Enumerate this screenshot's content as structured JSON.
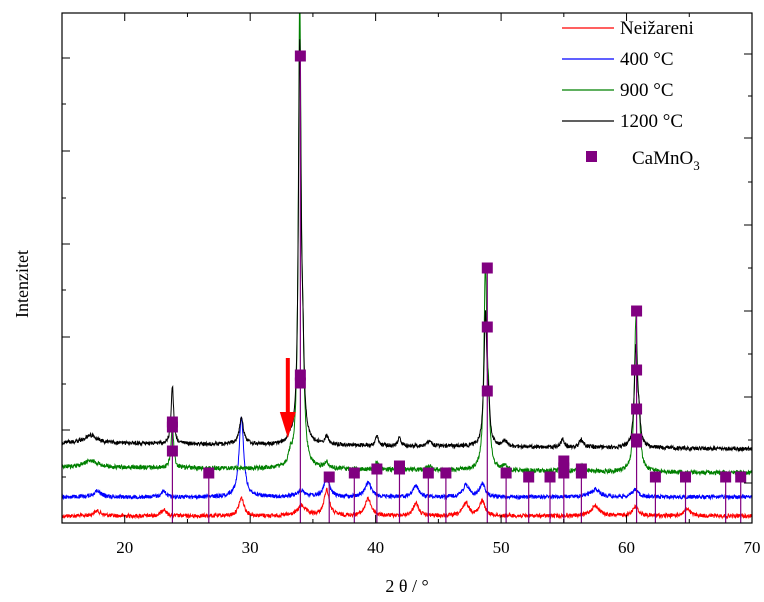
{
  "chart_data": {
    "type": "line",
    "xlabel": "2 θ / °",
    "ylabel": "Intenzitet",
    "xlim": [
      15,
      70
    ],
    "xticks": [
      20,
      30,
      40,
      50,
      60,
      70
    ],
    "grid": false,
    "legend_position": "top-right",
    "colors": {
      "neizareni": "#ff0000",
      "c400": "#0000ff",
      "c900": "#008000",
      "c1200": "#000000",
      "marker": "#800080",
      "arrow": "#ff0000"
    },
    "series": [
      {
        "name": "Neižareni",
        "color": "#ff0000"
      },
      {
        "name": "400 °C",
        "color": "#0000ff"
      },
      {
        "name": "900 °C",
        "color": "#008000"
      },
      {
        "name": "1200 °C",
        "color": "#000000"
      }
    ],
    "marker_series": {
      "name": "CaMnO",
      "subscript": "3",
      "marker": "square",
      "color": "#800080"
    },
    "annotation": {
      "type": "arrow",
      "x": 33.0,
      "color": "#ff0000"
    }
  }
}
